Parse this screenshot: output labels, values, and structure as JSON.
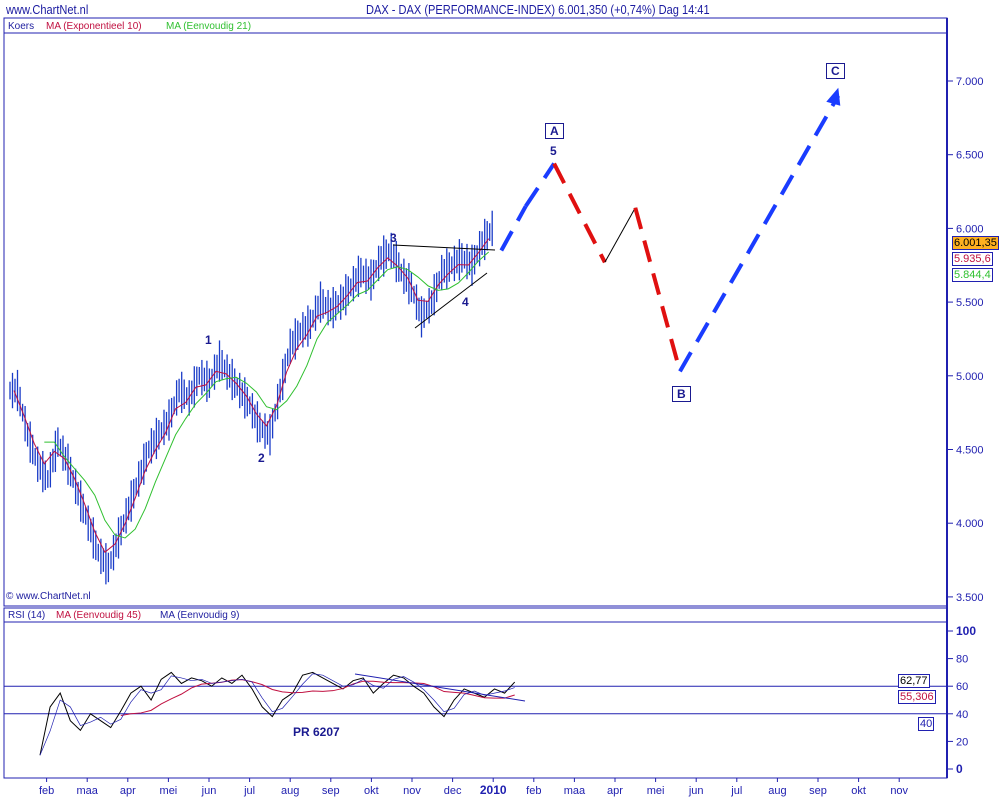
{
  "header": {
    "site": "www.ChartNet.nl",
    "title": "DAX - DAX (PERFORMANCE-INDEX)   6.001,350 (+0,74%)   Dag  14:41"
  },
  "legend": {
    "koers": "Koers",
    "ema": "MA (Exponentieel 10)",
    "sma": "MA (Eenvoudig 21)"
  },
  "rsi_legend": {
    "rsi": "RSI (14)",
    "ma45": "MA (Eenvoudig 45)",
    "ma9": "MA (Eenvoudig 9)"
  },
  "copyright": "© www.ChartNet.nl",
  "tags": {
    "last": "6.001,35",
    "ema": "5.935,6",
    "sma": "5.844,4",
    "rsi": "62,77",
    "rsi_ma": "55,306",
    "rsi_40": "40"
  },
  "annotations": {
    "w1": "1",
    "w2": "2",
    "w3": "3",
    "w4": "4",
    "w5": "5",
    "A": "A",
    "B": "B",
    "C": "C",
    "pr": "PR 6207"
  },
  "colors": {
    "price": "#1a3cc8",
    "ema": "#c01040",
    "sma": "#30c030",
    "up": "#1a3cff",
    "down": "#e01010"
  },
  "chart_data": [
    {
      "type": "line",
      "title": "DAX - DAX (PERFORMANCE-INDEX)",
      "ylim": [
        3500,
        7250
      ],
      "yticks": [
        3500,
        4000,
        4500,
        5000,
        5500,
        6000,
        6500,
        7000
      ],
      "ytick_labels": [
        "3.500",
        "4.000",
        "4.500",
        "5.000",
        "5.500",
        "6.000",
        "6.500",
        "7.000"
      ],
      "xtick_labels": [
        "feb",
        "maa",
        "apr",
        "mei",
        "jun",
        "jul",
        "aug",
        "sep",
        "okt",
        "nov",
        "dec",
        "2010",
        "feb",
        "maa",
        "apr",
        "mei",
        "jun",
        "jul",
        "aug",
        "sep",
        "okt",
        "nov"
      ],
      "x_unit": "weeks from jan 2009",
      "close": [
        4900,
        4600,
        4400,
        4300,
        4550,
        4400,
        4200,
        4000,
        3800,
        3700,
        3900,
        4100,
        4300,
        4500,
        4600,
        4700,
        4900,
        4850,
        5000,
        4950,
        5100,
        5000,
        4900,
        4800,
        4650,
        4600,
        4900,
        5200,
        5300,
        5350,
        5500,
        5450,
        5500,
        5600,
        5700,
        5650,
        5800,
        5850,
        5700,
        5600,
        5400,
        5500,
        5700,
        5750,
        5800,
        5750,
        5900,
        6000
      ],
      "projection": [
        {
          "month": 12.2,
          "price": 5850,
          "color": "up"
        },
        {
          "month": 12.8,
          "price": 6150,
          "color": "up"
        },
        {
          "month": 13.5,
          "price": 6440,
          "color": "up"
        },
        {
          "month": 14.75,
          "price": 5770,
          "color": "down"
        },
        {
          "month": 15.5,
          "price": 6140,
          "color": "thin"
        },
        {
          "month": 16.6,
          "price": 5030,
          "color": "down"
        },
        {
          "month": 20.5,
          "price": 6900,
          "color": "up"
        }
      ]
    },
    {
      "type": "line",
      "title": "RSI (14)",
      "ylim": [
        0,
        100
      ],
      "yticks": [
        0,
        20,
        40,
        60,
        80,
        100
      ],
      "ytick_labels": [
        "0",
        "20",
        "40",
        "60",
        "80",
        "100"
      ],
      "hlines": [
        60,
        40
      ],
      "rsi": [
        10,
        45,
        55,
        35,
        28,
        40,
        35,
        30,
        42,
        55,
        60,
        50,
        65,
        70,
        62,
        66,
        64,
        60,
        66,
        62,
        68,
        58,
        45,
        38,
        50,
        55,
        68,
        70,
        66,
        62,
        58,
        64,
        66,
        55,
        62,
        68,
        66,
        60,
        55,
        45,
        38,
        50,
        58,
        55,
        52,
        58,
        55,
        63
      ]
    }
  ]
}
